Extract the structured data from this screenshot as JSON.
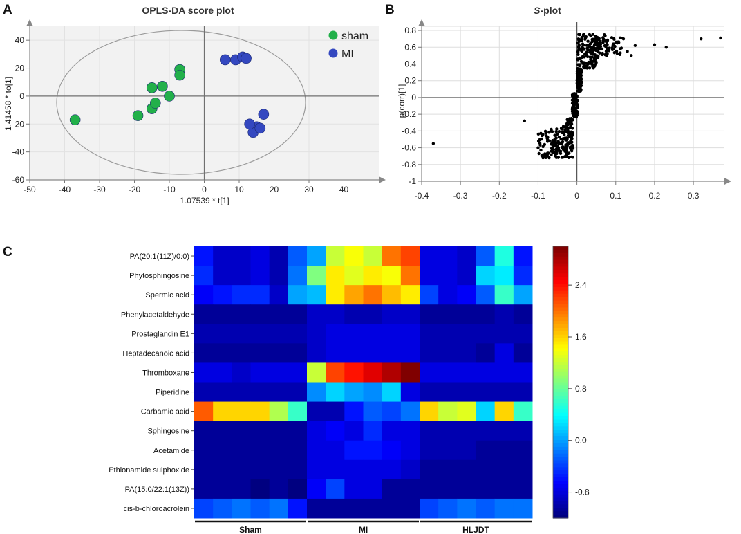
{
  "panels": {
    "a": "A",
    "b": "B",
    "c": "C"
  },
  "colors": {
    "sham": "#22b04a",
    "mi": "#3448c0",
    "axis": "#888888"
  },
  "chart_data": [
    {
      "type": "scatter",
      "title": "OPLS-DA score plot",
      "xlabel": "1.07539 * t[1]",
      "ylabel": "1.41458 * to[1]",
      "xlim": [
        -50,
        50
      ],
      "ylim": [
        -60,
        50
      ],
      "x_ticks": [
        "-50",
        "-40",
        "-30",
        "-20",
        "-10",
        "0",
        "10",
        "20",
        "30",
        "40"
      ],
      "y_ticks": [
        "40",
        "20",
        "0",
        "-20",
        "-40",
        "-60"
      ],
      "legend": [
        "sham",
        "MI"
      ],
      "series": [
        {
          "name": "sham",
          "points": [
            [
              -37,
              -17
            ],
            [
              -19,
              -14
            ],
            [
              -15,
              -9
            ],
            [
              -14,
              -5
            ],
            [
              -10,
              0
            ],
            [
              -15,
              6
            ],
            [
              -12,
              7
            ],
            [
              -7,
              19
            ],
            [
              -7,
              15
            ]
          ]
        },
        {
          "name": "MI",
          "points": [
            [
              6,
              26
            ],
            [
              9,
              26
            ],
            [
              11,
              28
            ],
            [
              12,
              27
            ],
            [
              17,
              -13
            ],
            [
              15,
              -22
            ],
            [
              14,
              -26
            ],
            [
              16,
              -23
            ],
            [
              13,
              -20
            ]
          ]
        }
      ]
    },
    {
      "type": "scatter",
      "title": "S-plot",
      "title_italic": "S",
      "title_rest": "-plot",
      "xlabel": "",
      "ylabel": "p(corr)[1]",
      "xlim": [
        -0.4,
        0.38
      ],
      "ylim": [
        -1,
        0.85
      ],
      "x_ticks": [
        "-0.4",
        "-0.3",
        "-0.2",
        "-0.1",
        "0",
        "0.1",
        "0.2",
        "0.3"
      ],
      "y_ticks": [
        "0.8",
        "0.6",
        "0.4",
        "0.2",
        "0",
        "-0.2",
        "-0.4",
        "-0.6",
        "-0.8",
        "-1"
      ],
      "outliers": [
        [
          -0.37,
          -0.55
        ],
        [
          -0.135,
          -0.28
        ],
        [
          -0.1,
          -0.6
        ],
        [
          0.2,
          0.63
        ],
        [
          0.23,
          0.6
        ],
        [
          0.32,
          0.7
        ],
        [
          0.37,
          0.71
        ],
        [
          0.13,
          0.55
        ],
        [
          0.14,
          0.5
        ],
        [
          0.15,
          0.62
        ],
        [
          0.12,
          0.7
        ],
        [
          0.1,
          0.66
        ]
      ]
    },
    {
      "type": "heatmap",
      "rows": [
        "PA(20:1(11Z)/0:0)",
        "Phytosphingosine",
        "Spermic acid",
        "Phenylacetaldehyde",
        "Prostaglandin E1",
        "Heptadecanoic acid",
        "Thromboxane",
        "Piperidine",
        "Carbamic acid",
        "Sphingosine",
        "Acetamide",
        "Ethionamide sulphoxide",
        "PA(15:0/22:1(13Z))",
        "cis-b-chloroacrolein"
      ],
      "groups": [
        "Sham",
        "MI",
        "HLJDT"
      ],
      "colorbar_ticks": [
        "2.4",
        "1.6",
        "0.8",
        "0.0",
        "-0.8"
      ],
      "vmin": -1.2,
      "vmax": 3.0,
      "values": [
        [
          -0.6,
          -0.9,
          -0.9,
          -0.8,
          -1.0,
          -0.3,
          0.0,
          1.2,
          1.4,
          1.2,
          2.0,
          2.2,
          -0.8,
          -0.8,
          -0.9,
          -0.3,
          0.5,
          -0.6
        ],
        [
          -0.5,
          -0.9,
          -0.9,
          -0.8,
          -1.0,
          -0.2,
          0.9,
          1.5,
          1.3,
          1.5,
          1.4,
          2.0,
          -0.8,
          -0.8,
          -0.9,
          0.2,
          0.3,
          -0.5
        ],
        [
          -0.7,
          -0.6,
          -0.5,
          -0.5,
          -0.9,
          0.0,
          0.1,
          1.5,
          1.8,
          2.0,
          1.7,
          1.5,
          -0.4,
          -0.8,
          -0.7,
          -0.3,
          0.6,
          0.0
        ],
        [
          -1.1,
          -1.1,
          -1.1,
          -1.1,
          -1.1,
          -1.1,
          -0.9,
          -0.9,
          -1.0,
          -1.0,
          -0.9,
          -0.9,
          -1.1,
          -1.1,
          -1.1,
          -1.1,
          -1.0,
          -1.1
        ],
        [
          -1.0,
          -1.0,
          -1.0,
          -1.0,
          -1.0,
          -1.0,
          -0.9,
          -0.8,
          -0.8,
          -0.8,
          -0.8,
          -0.8,
          -1.0,
          -1.0,
          -1.0,
          -1.0,
          -1.0,
          -1.0
        ],
        [
          -1.1,
          -1.1,
          -1.1,
          -1.1,
          -1.1,
          -1.1,
          -0.9,
          -0.8,
          -0.8,
          -0.8,
          -0.8,
          -0.8,
          -1.0,
          -1.0,
          -1.0,
          -1.1,
          -0.8,
          -1.1
        ],
        [
          -0.8,
          -0.8,
          -0.9,
          -0.8,
          -0.8,
          -0.8,
          1.2,
          2.2,
          2.4,
          2.6,
          2.8,
          3.0,
          -0.8,
          -0.8,
          -0.8,
          -0.8,
          -0.8,
          -0.8
        ],
        [
          -1.0,
          -1.0,
          -1.0,
          -1.0,
          -1.0,
          -1.0,
          -0.1,
          0.2,
          0.0,
          -0.1,
          0.2,
          -0.8,
          -1.0,
          -1.0,
          -1.0,
          -1.0,
          -1.0,
          -1.0
        ],
        [
          2.1,
          1.6,
          1.6,
          1.6,
          1.1,
          0.6,
          -1.0,
          -1.0,
          -0.6,
          -0.3,
          -0.4,
          -0.2,
          1.6,
          1.2,
          1.3,
          0.2,
          1.6,
          0.6
        ],
        [
          -1.1,
          -1.1,
          -1.1,
          -1.1,
          -1.1,
          -1.1,
          -0.8,
          -0.7,
          -0.8,
          -0.5,
          -0.8,
          -0.8,
          -1.0,
          -1.0,
          -1.0,
          -1.0,
          -1.0,
          -1.0
        ],
        [
          -1.1,
          -1.1,
          -1.1,
          -1.1,
          -1.1,
          -1.1,
          -0.8,
          -0.8,
          -0.6,
          -0.6,
          -0.7,
          -0.8,
          -1.0,
          -1.0,
          -1.0,
          -1.1,
          -1.1,
          -1.1
        ],
        [
          -1.1,
          -1.1,
          -1.1,
          -1.1,
          -1.1,
          -1.1,
          -0.8,
          -0.8,
          -0.8,
          -0.8,
          -0.8,
          -0.9,
          -1.1,
          -1.1,
          -1.1,
          -1.1,
          -1.1,
          -1.1
        ],
        [
          -1.1,
          -1.1,
          -1.1,
          -1.2,
          -1.1,
          -1.2,
          -0.7,
          -0.4,
          -0.8,
          -0.8,
          -1.1,
          -1.1,
          -1.1,
          -1.1,
          -1.1,
          -1.1,
          -1.1,
          -1.1
        ],
        [
          -0.4,
          -0.3,
          -0.2,
          -0.3,
          -0.2,
          -0.6,
          -1.1,
          -1.1,
          -1.1,
          -1.1,
          -1.1,
          -1.1,
          -0.4,
          -0.3,
          -0.2,
          -0.3,
          -0.2,
          -0.2
        ]
      ]
    }
  ]
}
